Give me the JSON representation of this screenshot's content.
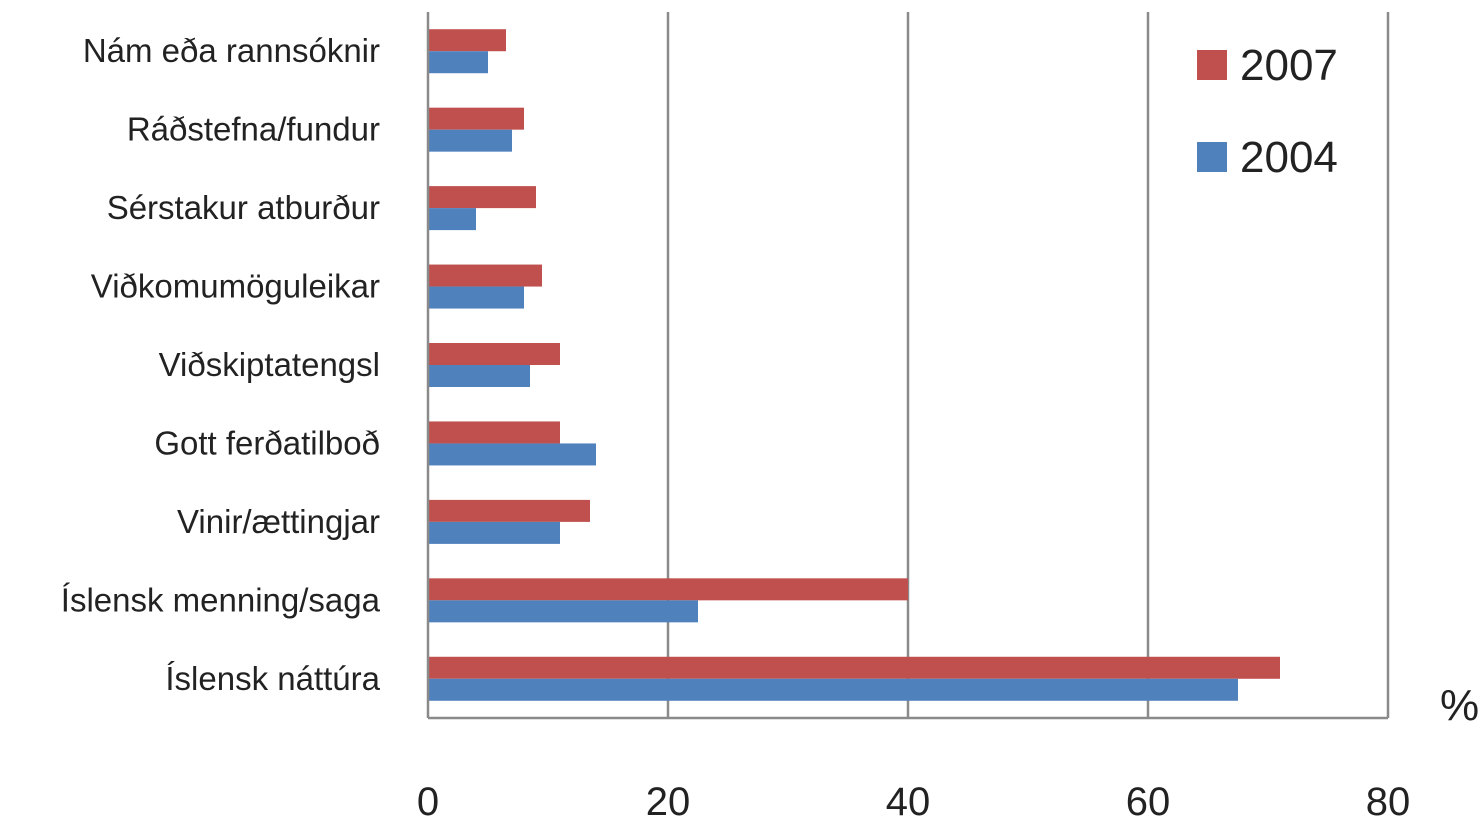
{
  "chart_data": {
    "type": "bar",
    "orientation": "horizontal",
    "categories": [
      "Nám eða rannsóknir",
      "Ráðstefna/fundur",
      "Sérstakur atburður",
      "Viðkomumöguleikar",
      "Viðskiptatengsl",
      "Gott ferðatilboð",
      "Vinir/ættingjar",
      "Íslensk menning/saga",
      "Íslensk náttúra"
    ],
    "series": [
      {
        "name": "2007",
        "color": "#c0504d",
        "values": [
          6.5,
          8,
          9,
          9.5,
          11,
          11,
          13.5,
          40,
          71
        ]
      },
      {
        "name": "2004",
        "color": "#4f81bd",
        "values": [
          5,
          7,
          4,
          8,
          8.5,
          14,
          11,
          22.5,
          67.5
        ]
      }
    ],
    "xlim": [
      0,
      80
    ],
    "xticks": [
      "0",
      "20",
      "40",
      "60",
      "80"
    ],
    "xlabel": "%",
    "grid": true,
    "legend_position": "top-right"
  }
}
